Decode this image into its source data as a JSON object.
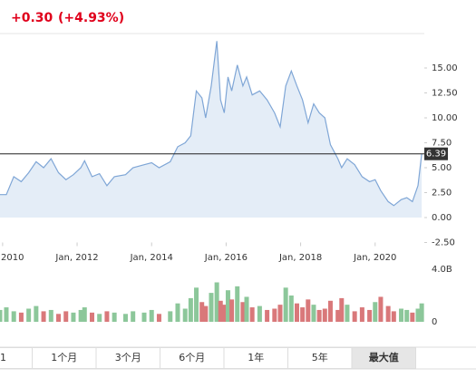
{
  "chart_data": {
    "type": "area",
    "change": "+0.30",
    "change_percent": "(+4.93%)",
    "x": [
      2009.93,
      2010.1,
      2010.3,
      2010.5,
      2010.7,
      2010.9,
      2011.1,
      2011.3,
      2011.5,
      2011.7,
      2011.9,
      2012.1,
      2012.2,
      2012.4,
      2012.6,
      2012.8,
      2013.0,
      2013.3,
      2013.5,
      2013.8,
      2014.0,
      2014.2,
      2014.5,
      2014.7,
      2014.9,
      2015.05,
      2015.2,
      2015.35,
      2015.45,
      2015.6,
      2015.75,
      2015.85,
      2015.95,
      2016.05,
      2016.15,
      2016.3,
      2016.45,
      2016.55,
      2016.7,
      2016.9,
      2017.1,
      2017.3,
      2017.45,
      2017.6,
      2017.75,
      2017.9,
      2018.05,
      2018.2,
      2018.35,
      2018.5,
      2018.65,
      2018.8,
      2019.0,
      2019.1,
      2019.25,
      2019.45,
      2019.65,
      2019.85,
      2020.0,
      2020.15,
      2020.35,
      2020.5,
      2020.7,
      2020.85,
      2021.0,
      2021.15,
      2021.25
    ],
    "values": [
      2.3,
      2.3,
      4.1,
      3.6,
      4.5,
      5.6,
      5.0,
      5.9,
      4.5,
      3.8,
      4.3,
      5.0,
      5.7,
      4.1,
      4.4,
      3.2,
      4.1,
      4.3,
      5.0,
      5.3,
      5.5,
      5.0,
      5.6,
      7.1,
      7.5,
      8.2,
      12.7,
      12.0,
      10.0,
      13.2,
      17.7,
      11.8,
      10.5,
      14.1,
      12.7,
      15.3,
      13.2,
      14.1,
      12.3,
      12.7,
      11.8,
      10.5,
      9.1,
      13.2,
      14.7,
      13.2,
      11.8,
      9.5,
      11.4,
      10.5,
      10.0,
      7.3,
      5.9,
      5.0,
      5.9,
      5.3,
      4.1,
      3.6,
      3.8,
      2.7,
      1.6,
      1.2,
      1.8,
      2.0,
      1.6,
      3.2,
      6.39
    ],
    "volume": [
      0.9,
      1.1,
      0.8,
      0.7,
      1.0,
      1.2,
      0.8,
      0.9,
      0.6,
      0.8,
      0.7,
      0.9,
      1.1,
      0.7,
      0.6,
      0.8,
      0.7,
      0.6,
      0.8,
      0.7,
      0.9,
      0.6,
      0.8,
      1.4,
      1.0,
      1.8,
      2.6,
      1.5,
      1.2,
      2.2,
      3.0,
      1.6,
      1.3,
      2.4,
      1.7,
      2.7,
      1.5,
      1.9,
      1.1,
      1.2,
      0.9,
      1.0,
      1.3,
      2.6,
      2.0,
      1.4,
      1.1,
      1.7,
      1.3,
      0.9,
      1.0,
      1.6,
      0.9,
      1.8,
      1.3,
      0.8,
      1.1,
      0.9,
      1.5,
      1.9,
      1.2,
      0.8,
      1.0,
      0.9,
      0.7,
      1.0,
      1.4
    ],
    "current_price": 6.39,
    "line_color": "#7fa6d6",
    "fill_color": "#e4edf7",
    "up_color": "#8cc79a",
    "down_color": "#d9787a",
    "xlim": [
      2009.93,
      2021.32
    ],
    "xticks": [
      {
        "value": 2010,
        "label": "Jan, 2010"
      },
      {
        "value": 2012,
        "label": "Jan, 2012"
      },
      {
        "value": 2014,
        "label": "Jan, 2014"
      },
      {
        "value": 2016,
        "label": "Jan, 2016"
      },
      {
        "value": 2018,
        "label": "Jan, 2018"
      },
      {
        "value": 2020,
        "label": "Jan, 2020"
      }
    ],
    "ylim": [
      -2.5,
      18.4
    ],
    "yticks": [
      {
        "value": -2.5,
        "label": "-2.50"
      },
      {
        "value": 0,
        "label": "0.00"
      },
      {
        "value": 2.5,
        "label": "2.50"
      },
      {
        "value": 5,
        "label": "5.00"
      },
      {
        "value": 7.5,
        "label": "7.50"
      },
      {
        "value": 10,
        "label": "10.00"
      },
      {
        "value": 12.5,
        "label": "12.50"
      },
      {
        "value": 15,
        "label": "15.00"
      }
    ],
    "volume_ylim": [
      0,
      4
    ],
    "volume_ticks": [
      {
        "value": 4,
        "label": "4.0B"
      },
      0
    ],
    "range_buttons": [
      "1",
      "1个月",
      "3个月",
      "6个月",
      "1年",
      "5年",
      "最大值"
    ],
    "active": "最大值"
  }
}
